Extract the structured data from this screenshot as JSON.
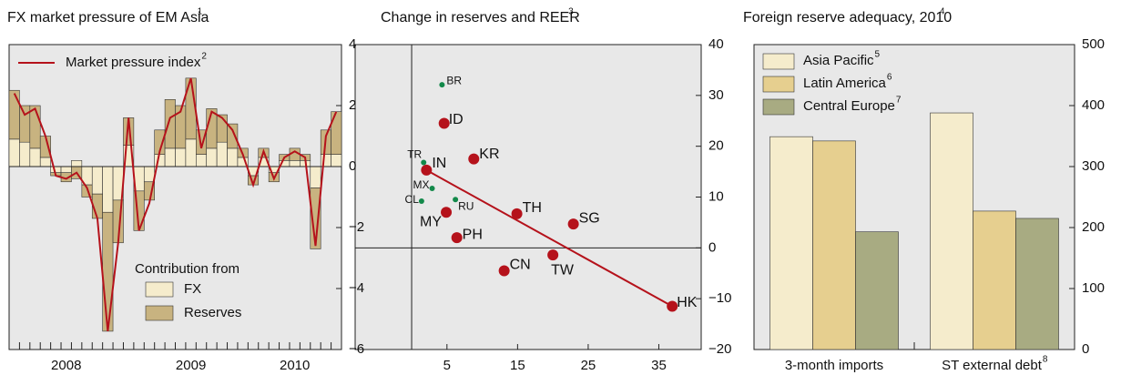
{
  "chart_data": [
    {
      "type": "combo",
      "title": "FX market pressure of EM Asia",
      "title_note": "1",
      "categories": [
        null,
        null,
        null,
        null,
        null,
        "2008",
        null,
        null,
        null,
        null,
        null,
        null,
        null,
        null,
        null,
        null,
        null,
        "2009",
        null,
        null,
        null,
        null,
        null,
        null,
        null,
        null,
        null,
        "2010",
        null,
        null,
        null,
        null
      ],
      "series": [
        {
          "name": "FX",
          "color": "#f5eccc",
          "values": [
            0.9,
            0.8,
            0.6,
            0.3,
            -0.2,
            -0.2,
            0.2,
            -0.6,
            -0.9,
            -1.5,
            -1.1,
            0.7,
            -0.8,
            -0.5,
            0.4,
            0.6,
            0.6,
            0.9,
            0.4,
            0.6,
            0.8,
            0.6,
            0.3,
            -0.3,
            0.3,
            -0.2,
            0.2,
            0.2,
            0.2,
            -0.7,
            0.4,
            0.4
          ]
        },
        {
          "name": "Reserves",
          "color": "#c8b380",
          "values": [
            1.6,
            1.2,
            1.4,
            0.7,
            -0.1,
            -0.3,
            -0.4,
            -0.4,
            -0.8,
            -3.9,
            -1.4,
            0.9,
            -1.3,
            -0.6,
            0.8,
            1.6,
            1.4,
            2.0,
            0.8,
            1.3,
            0.9,
            0.8,
            0.3,
            -0.3,
            0.3,
            -0.3,
            0.2,
            0.4,
            0.2,
            -2.0,
            0.8,
            1.4
          ]
        },
        {
          "name": "Market pressure index",
          "note": "2",
          "kind": "line",
          "color": "#b5121b",
          "values": [
            2.4,
            1.7,
            1.9,
            1.0,
            -0.3,
            -0.4,
            -0.2,
            -0.7,
            -1.7,
            -5.4,
            -2.5,
            1.6,
            -2.1,
            -1.2,
            0.5,
            1.6,
            1.8,
            2.9,
            0.6,
            1.8,
            1.6,
            1.2,
            0.4,
            -0.6,
            0.5,
            -0.4,
            0.3,
            0.5,
            0.3,
            -2.6,
            1.0,
            1.8
          ]
        }
      ],
      "legend_title": "Contribution from",
      "ylim": [
        -6,
        4
      ],
      "yticks": [
        4,
        2,
        0,
        {
          "value": -2,
          "label": "−2"
        },
        {
          "value": -4,
          "label": "−4"
        },
        {
          "value": -6,
          "label": "−6"
        }
      ]
    },
    {
      "type": "scatter",
      "title": "Change in reserves and REER",
      "title_note": "3",
      "series": [
        {
          "color": "#b5121b",
          "labels": [
            "ID",
            "KR",
            "IN",
            "TH",
            "SG",
            "MY",
            "PH",
            "CN",
            "TW",
            "HK"
          ],
          "x": [
            4.6,
            8.8,
            2.1,
            14.9,
            22.9,
            4.9,
            6.4,
            13.1,
            20.0,
            36.9
          ],
          "y": [
            24.5,
            17.5,
            15.3,
            6.7,
            4.7,
            7.0,
            2.0,
            -4.5,
            -1.4,
            -11.5
          ]
        },
        {
          "color": "#13894a",
          "labels": [
            "BR",
            "TR",
            "MX",
            "CL",
            "RU"
          ],
          "x": [
            4.3,
            1.7,
            2.9,
            1.4,
            6.2
          ],
          "y": [
            32.1,
            16.8,
            11.7,
            9.2,
            9.5
          ]
        }
      ],
      "fit": {
        "color": "#b5121b",
        "x": [
          2.1,
          36.9
        ],
        "y": [
          15.3,
          -11.5
        ]
      },
      "xlim": [
        -8,
        41
      ],
      "xticks": [
        5,
        15,
        25,
        35
      ],
      "ylim": [
        -20,
        40
      ],
      "yticks": [
        40,
        30,
        20,
        10,
        0,
        {
          "value": -10,
          "label": "−10"
        },
        {
          "value": -20,
          "label": "−20"
        }
      ]
    },
    {
      "type": "bar",
      "title": "Foreign reserve adequacy, 2010",
      "title_note": "4",
      "categories": [
        "3-month imports",
        "ST external debt"
      ],
      "category_notes": {
        "1": "8"
      },
      "series": [
        {
          "name": "Asia Pacific",
          "note": "5",
          "color": "#f5eccc",
          "values": [
            349,
            388
          ]
        },
        {
          "name": "Latin America",
          "note": "6",
          "color": "#e6cf8f",
          "values": [
            342,
            227
          ]
        },
        {
          "name": "Central Europe",
          "note": "7",
          "color": "#a8ab82",
          "values": [
            193,
            215
          ]
        }
      ],
      "ylim": [
        0,
        500
      ],
      "yticks": [
        0,
        100,
        200,
        300,
        400,
        500
      ]
    }
  ]
}
